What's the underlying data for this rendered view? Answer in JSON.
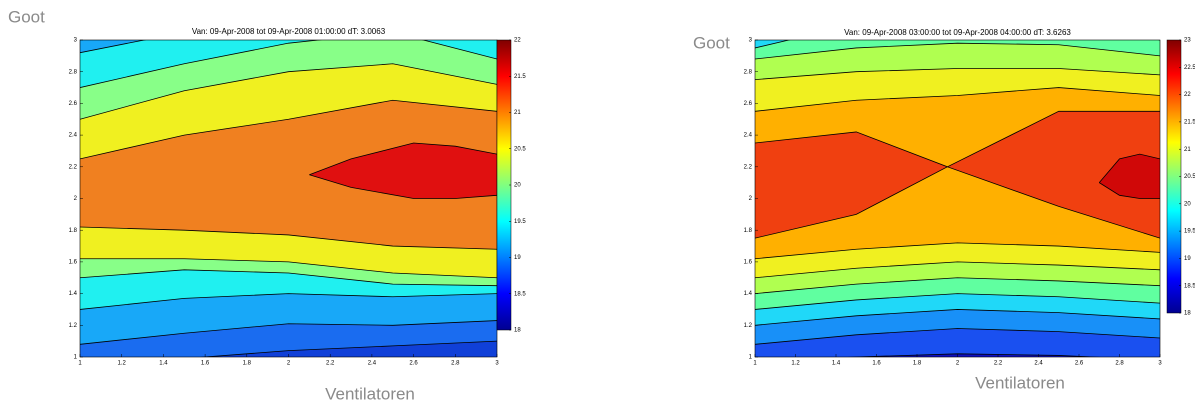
{
  "chart_data": [
    {
      "type": "contour",
      "title": "Van: 09-Apr-2008 tot 09-Apr-2008 01:00:00 dT: 3.0063",
      "xlabel": "Ventilatoren",
      "ylabel": "Goot",
      "xlim": [
        1,
        3
      ],
      "ylim": [
        1,
        3
      ],
      "xticks": [
        1,
        1.2,
        1.4,
        1.6,
        1.8,
        2,
        2.2,
        2.4,
        2.6,
        2.8,
        3
      ],
      "yticks": [
        1,
        1.2,
        1.4,
        1.6,
        1.8,
        2,
        2.2,
        2.4,
        2.6,
        2.8,
        3
      ],
      "background": "#1040d8",
      "colorbar": {
        "lim": [
          18,
          22
        ],
        "ticks": [
          18,
          18.5,
          19,
          19.5,
          20,
          20.5,
          21,
          21.5,
          22
        ],
        "colormap": [
          "#000090",
          "#0000ff",
          "#0080ff",
          "#00ffff",
          "#80ff80",
          "#ffff00",
          "#ff8000",
          "#ff0000",
          "#800000"
        ]
      },
      "contours": [
        {
          "level": 18.5,
          "color": "#1a6cf0",
          "x": [
            1,
            1.5,
            2,
            2.5,
            3
          ],
          "lower": [
            0.98,
            0.99,
            1.04,
            1.07,
            1.1
          ]
        },
        {
          "level": 19,
          "color": "#18a8f8",
          "x": [
            1,
            1.5,
            2,
            2.5,
            3
          ],
          "lower": [
            1.08,
            1.15,
            1.21,
            1.2,
            1.23
          ]
        },
        {
          "level": 19.5,
          "color": "#20f0f0",
          "x": [
            1,
            1.5,
            2,
            2.5,
            3
          ],
          "lower": [
            1.3,
            1.37,
            1.4,
            1.38,
            1.4
          ],
          "upper": [
            2.92,
            3.05,
            3.1,
            3.1,
            3.02
          ]
        },
        {
          "level": 20,
          "color": "#88ff88",
          "x": [
            1,
            1.5,
            2,
            2.5,
            3
          ],
          "lower": [
            1.5,
            1.55,
            1.53,
            1.46,
            1.45
          ],
          "upper": [
            2.7,
            2.85,
            2.98,
            3.05,
            2.88
          ]
        },
        {
          "level": 20.5,
          "color": "#f0f020",
          "x": [
            1,
            1.5,
            2,
            2.5,
            3
          ],
          "lower": [
            1.62,
            1.62,
            1.6,
            1.53,
            1.5
          ],
          "upper": [
            2.5,
            2.68,
            2.8,
            2.85,
            2.72
          ]
        },
        {
          "level": 21,
          "color": "#f08020",
          "x": [
            1,
            1.5,
            2,
            2.5,
            3
          ],
          "lower": [
            1.82,
            1.8,
            1.77,
            1.7,
            1.68
          ],
          "upper": [
            2.25,
            2.4,
            2.5,
            2.62,
            2.55
          ]
        },
        {
          "level": 21.5,
          "color": "#e01010",
          "x": [
            2.1,
            2.3,
            2.6,
            2.8,
            3
          ],
          "lower": [
            2.15,
            2.07,
            2,
            2,
            2.02
          ],
          "upper": [
            2.15,
            2.25,
            2.35,
            2.33,
            2.28
          ]
        }
      ]
    },
    {
      "type": "contour",
      "title": "Van: 09-Apr-2008 03:00:00 tot 09-Apr-2008 04:00:00 dT: 3.6263",
      "xlabel": "Ventilatoren",
      "ylabel": "Goot",
      "xlim": [
        1,
        3
      ],
      "ylim": [
        1,
        3
      ],
      "xticks": [
        1,
        1.2,
        1.4,
        1.6,
        1.8,
        2,
        2.2,
        2.4,
        2.6,
        2.8,
        3
      ],
      "yticks": [
        1,
        1.2,
        1.4,
        1.6,
        1.8,
        2,
        2.2,
        2.4,
        2.6,
        2.8,
        3
      ],
      "background": "#1010c0",
      "colorbar": {
        "lim": [
          18,
          23
        ],
        "ticks": [
          18,
          18.5,
          19,
          19.5,
          20,
          20.5,
          21,
          21.5,
          22,
          22.5,
          23
        ],
        "colormap": [
          "#000090",
          "#0000ff",
          "#0080ff",
          "#00ffff",
          "#80ff80",
          "#ffff00",
          "#ff8000",
          "#ff0000",
          "#800000"
        ]
      },
      "contours": [
        {
          "level": 18.5,
          "color": "#1a50f0",
          "x": [
            1,
            1.5,
            2,
            2.5,
            3
          ],
          "lower": [
            0.97,
            1,
            1.02,
            1.01,
            0.98
          ]
        },
        {
          "level": 19,
          "color": "#1890f8",
          "x": [
            1,
            1.5,
            2,
            2.5,
            3
          ],
          "lower": [
            1.08,
            1.14,
            1.18,
            1.16,
            1.12
          ]
        },
        {
          "level": 19.5,
          "color": "#20d8f8",
          "x": [
            1,
            1.5,
            2,
            2.5,
            3
          ],
          "lower": [
            1.2,
            1.26,
            1.3,
            1.28,
            1.24
          ]
        },
        {
          "level": 20,
          "color": "#60ffa0",
          "x": [
            1,
            1.5,
            2,
            2.5,
            3
          ],
          "lower": [
            1.3,
            1.36,
            1.4,
            1.38,
            1.34
          ],
          "upper": [
            2.95,
            3.1,
            3.15,
            3.12,
            3
          ]
        },
        {
          "level": 20.5,
          "color": "#b0ff50",
          "x": [
            1,
            1.5,
            2,
            2.5,
            3
          ],
          "lower": [
            1.4,
            1.46,
            1.5,
            1.48,
            1.45
          ],
          "upper": [
            2.88,
            2.95,
            2.98,
            2.97,
            2.9
          ]
        },
        {
          "level": 21,
          "color": "#f0f020",
          "x": [
            1,
            1.5,
            2,
            2.5,
            3
          ],
          "lower": [
            1.5,
            1.56,
            1.6,
            1.58,
            1.55
          ],
          "upper": [
            2.75,
            2.8,
            2.82,
            2.82,
            2.78
          ]
        },
        {
          "level": 21.5,
          "color": "#ffb000",
          "x": [
            1,
            1.5,
            2,
            2.5,
            3
          ],
          "lower": [
            1.62,
            1.68,
            1.72,
            1.7,
            1.66
          ],
          "upper": [
            2.55,
            2.62,
            2.65,
            2.7,
            2.65
          ]
        },
        {
          "level": 22,
          "color": "#f04010",
          "x": [
            1,
            1.5,
            1.95,
            2.5,
            3
          ],
          "lower": [
            1.75,
            1.9,
            2.2,
            1.95,
            1.75
          ],
          "upper": [
            2.35,
            2.42,
            2.2,
            2.55,
            2.55
          ]
        },
        {
          "level": 22.5,
          "color": "#d00808",
          "x": [
            2.7,
            2.8,
            2.9,
            3
          ],
          "lower": [
            2.1,
            2.02,
            2,
            2
          ],
          "upper": [
            2.1,
            2.25,
            2.28,
            2.25
          ]
        }
      ]
    }
  ]
}
